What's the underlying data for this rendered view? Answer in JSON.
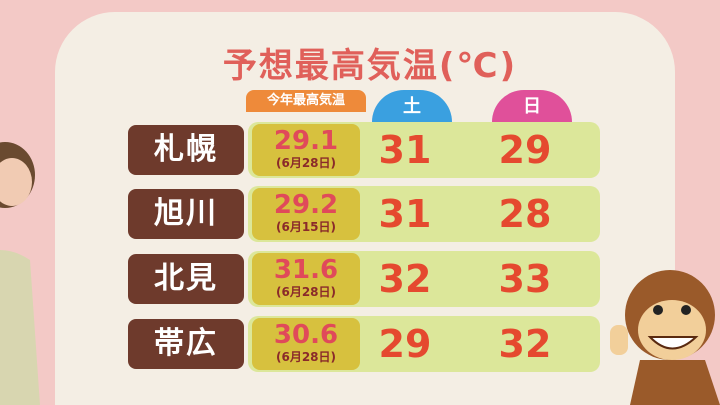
{
  "title": "予想最高気温(℃)",
  "headers": {
    "this_year": "今年最高気温",
    "sat": "土",
    "sun": "日"
  },
  "rows": [
    {
      "city": "札幌",
      "this_year": "29.1",
      "date": "(6月28日)",
      "sat": "31",
      "sun": "29"
    },
    {
      "city": "旭川",
      "this_year": "29.2",
      "date": "(6月15日)",
      "sat": "31",
      "sun": "28"
    },
    {
      "city": "北見",
      "this_year": "31.6",
      "date": "(6月28日)",
      "sat": "32",
      "sun": "33"
    },
    {
      "city": "帯広",
      "this_year": "30.6",
      "date": "(6月28日)",
      "sat": "29",
      "sun": "32"
    }
  ],
  "colors": {
    "sat": "#3aa0e0",
    "sun": "#e0509a",
    "name_bg": "#6e3a2c",
    "value": "#e5492f"
  }
}
